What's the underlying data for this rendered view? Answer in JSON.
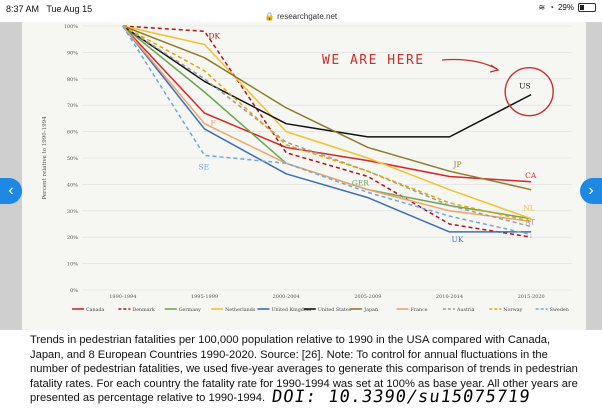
{
  "status_bar": {
    "time": "8:37 AM",
    "date": "Tue Aug 15",
    "url": "researchgate.net",
    "battery": "29%"
  },
  "annotation": {
    "text": "WE ARE HERE"
  },
  "caption": {
    "text": "Trends in pedestrian fatalities per 100,000 population relative to 1990 in the USA compared with Canada, Japan, and 8 European Countries 1990-2020. Source: [26]. Note: To control for annual fluctuations in the number of pedestrian fatalities, we used five-year averages to generate this comparison of trends in pedestrian fatality rates. For each country the fatality rate for 1990-1994 was set at 100% as base year. All other years are presented as percentage relative to 1990-1994.",
    "doi": "DOI: 10.3390/su15075719"
  },
  "nav": {
    "prev_icon": "chevron-left-icon",
    "next_icon": "chevron-right-icon"
  },
  "chart_data": {
    "type": "line",
    "ylabel": "Percent relative to 1990-1994",
    "x": [
      "1990-1994",
      "1995-1999",
      "2000-2004",
      "2005-2009",
      "2010-2014",
      "2015-2020"
    ],
    "yticks": [
      "0%",
      "10%",
      "20%",
      "30%",
      "40%",
      "50%",
      "60%",
      "70%",
      "80%",
      "90%",
      "100%"
    ],
    "ylim": [
      0,
      100
    ],
    "grid": true,
    "legend_position": "bottom",
    "series": [
      {
        "name": "Canada",
        "label": "CA",
        "color": "#d62728",
        "dash": false,
        "values": [
          100,
          67,
          54,
          49,
          43,
          41
        ]
      },
      {
        "name": "Denmark",
        "label": "DK",
        "color": "#b5121b",
        "dash": true,
        "values": [
          100,
          98,
          52,
          43,
          25,
          20
        ]
      },
      {
        "name": "Germany",
        "label": "GER",
        "color": "#6aa84f",
        "dash": false,
        "values": [
          100,
          75,
          48,
          38,
          32,
          27
        ]
      },
      {
        "name": "Netherlands",
        "label": "NL",
        "color": "#f2c230",
        "dash": false,
        "values": [
          100,
          93,
          60,
          50,
          38,
          27
        ]
      },
      {
        "name": "United Kingdom",
        "label": "UK",
        "color": "#3d6fb6",
        "dash": false,
        "values": [
          100,
          61,
          44,
          35,
          22,
          22
        ]
      },
      {
        "name": "United States",
        "label": "US",
        "color": "#111111",
        "dash": false,
        "values": [
          100,
          79,
          63,
          58,
          58,
          74
        ]
      },
      {
        "name": "Japan",
        "label": "JP",
        "color": "#8b7d2a",
        "dash": false,
        "values": [
          100,
          88,
          69,
          54,
          45,
          38
        ]
      },
      {
        "name": "France",
        "label": "F",
        "color": "#f0a36b",
        "dash": false,
        "values": [
          100,
          63,
          48,
          38,
          30,
          26
        ]
      },
      {
        "name": "Austria",
        "label": "AT",
        "color": "#9a9a9a",
        "dash": true,
        "values": [
          100,
          80,
          56,
          45,
          32,
          24
        ]
      },
      {
        "name": "Norway",
        "label": "",
        "color": "#e0a800",
        "dash": true,
        "values": [
          100,
          83,
          55,
          45,
          33,
          26
        ]
      },
      {
        "name": "Sweden",
        "label": "SE",
        "color": "#6fa8dc",
        "dash": true,
        "values": [
          100,
          51,
          48,
          37,
          28,
          21
        ]
      }
    ]
  }
}
